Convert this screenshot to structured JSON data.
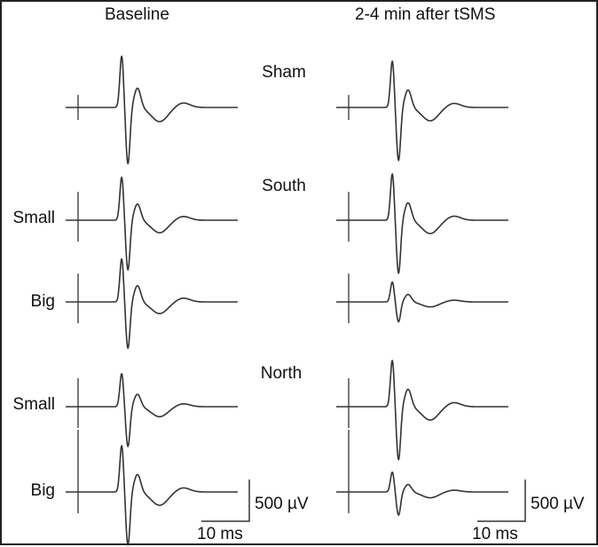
{
  "columns": [
    {
      "title": "Baseline"
    },
    {
      "title": "2-4 min after tSMS"
    }
  ],
  "groups": [
    {
      "label": "Sham",
      "rows": [
        ""
      ]
    },
    {
      "label": "South",
      "rows": [
        "Small",
        "Big"
      ]
    },
    {
      "label": "North",
      "rows": [
        "Small",
        "Big"
      ]
    }
  ],
  "scale_bar": {
    "amplitude_label": "500 µV",
    "time_label": "10 ms",
    "amplitude_uV": 500,
    "time_ms": 10
  },
  "colors": {
    "trace": "#333333",
    "axis": "#333333",
    "border": "#222222"
  },
  "chart_data": {
    "type": "line",
    "xlabel": "",
    "ylabel": "",
    "x_unit": "ms",
    "y_unit": "µV",
    "series": [
      {
        "group": "Sham",
        "size": "",
        "column": "Baseline",
        "peak_uV": 620,
        "trough_uV": -680,
        "latency_ms": 11
      },
      {
        "group": "Sham",
        "size": "",
        "column": "2-4 min after tSMS",
        "peak_uV": 560,
        "trough_uV": -640,
        "latency_ms": 11
      },
      {
        "group": "South",
        "size": "Small",
        "column": "Baseline",
        "peak_uV": 520,
        "trough_uV": -600,
        "latency_ms": 11
      },
      {
        "group": "South",
        "size": "Small",
        "column": "2-4 min after tSMS",
        "peak_uV": 560,
        "trough_uV": -640,
        "latency_ms": 11
      },
      {
        "group": "South",
        "size": "Big",
        "column": "Baseline",
        "peak_uV": 520,
        "trough_uV": -560,
        "latency_ms": 11
      },
      {
        "group": "South",
        "size": "Big",
        "column": "2-4 min after tSMS",
        "peak_uV": 240,
        "trough_uV": -240,
        "latency_ms": 11
      },
      {
        "group": "North",
        "size": "Small",
        "column": "Baseline",
        "peak_uV": 400,
        "trough_uV": -480,
        "latency_ms": 11
      },
      {
        "group": "North",
        "size": "Small",
        "column": "2-4 min after tSMS",
        "peak_uV": 560,
        "trough_uV": -640,
        "latency_ms": 11
      },
      {
        "group": "North",
        "size": "Big",
        "column": "Baseline",
        "peak_uV": 560,
        "trough_uV": -640,
        "latency_ms": 11
      },
      {
        "group": "North",
        "size": "Big",
        "column": "2-4 min after tSMS",
        "peak_uV": 240,
        "trough_uV": -280,
        "latency_ms": 11
      }
    ]
  }
}
